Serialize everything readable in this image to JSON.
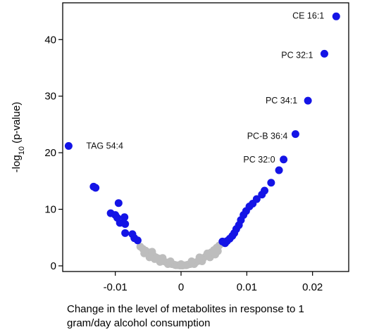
{
  "chart_data": {
    "type": "scatter",
    "xlabel_line1": "Change in the level of metabolites in response to 1",
    "xlabel_line2": "gram/day alcohol consumption",
    "ylabel_prefix": "-log",
    "ylabel_sub": "10",
    "ylabel_suffix": " (p-value)",
    "xlim": [
      -0.018,
      0.0255
    ],
    "ylim": [
      -1.0,
      46.5
    ],
    "x_ticks": [
      {
        "value": -0.01,
        "label": "-0.01"
      },
      {
        "value": 0.0,
        "label": "0"
      },
      {
        "value": 0.01,
        "label": "0.01"
      },
      {
        "value": 0.02,
        "label": "0.02"
      }
    ],
    "y_ticks": [
      {
        "value": 0,
        "label": "0"
      },
      {
        "value": 10,
        "label": "10"
      },
      {
        "value": 20,
        "label": "20"
      },
      {
        "value": 30,
        "label": "30"
      },
      {
        "value": 40,
        "label": "40"
      }
    ],
    "grid": false,
    "colors": {
      "significant": "#1414e6",
      "nonsignificant": "#bdbdbd"
    },
    "significant_points": [
      {
        "x": -0.0171,
        "y": 21.2
      },
      {
        "x": -0.0133,
        "y": 14.0
      },
      {
        "x": -0.013,
        "y": 13.8
      },
      {
        "x": -0.0107,
        "y": 9.3
      },
      {
        "x": -0.01,
        "y": 9.0
      },
      {
        "x": -0.0095,
        "y": 11.1
      },
      {
        "x": -0.0093,
        "y": 7.6
      },
      {
        "x": -0.0097,
        "y": 8.5
      },
      {
        "x": -0.0086,
        "y": 8.6
      },
      {
        "x": -0.0085,
        "y": 7.4
      },
      {
        "x": -0.0085,
        "y": 5.8
      },
      {
        "x": -0.0074,
        "y": 5.6
      },
      {
        "x": -0.0071,
        "y": 4.9
      },
      {
        "x": -0.0066,
        "y": 4.5
      },
      {
        "x": 0.0063,
        "y": 4.3
      },
      {
        "x": 0.0067,
        "y": 4.0
      },
      {
        "x": 0.007,
        "y": 4.4
      },
      {
        "x": 0.0074,
        "y": 4.8
      },
      {
        "x": 0.0078,
        "y": 5.3
      },
      {
        "x": 0.0081,
        "y": 5.8
      },
      {
        "x": 0.0084,
        "y": 6.5
      },
      {
        "x": 0.0088,
        "y": 7.2
      },
      {
        "x": 0.0091,
        "y": 8.1
      },
      {
        "x": 0.0095,
        "y": 9.0
      },
      {
        "x": 0.0099,
        "y": 9.7
      },
      {
        "x": 0.0104,
        "y": 10.5
      },
      {
        "x": 0.0109,
        "y": 11.0
      },
      {
        "x": 0.0115,
        "y": 11.8
      },
      {
        "x": 0.0123,
        "y": 12.6
      },
      {
        "x": 0.0127,
        "y": 13.3
      },
      {
        "x": 0.0137,
        "y": 14.7
      },
      {
        "x": 0.0149,
        "y": 16.9
      },
      {
        "x": 0.0156,
        "y": 18.8
      },
      {
        "x": 0.0174,
        "y": 23.3
      },
      {
        "x": 0.0193,
        "y": 29.2
      },
      {
        "x": 0.0218,
        "y": 37.5
      },
      {
        "x": 0.0236,
        "y": 44.1
      }
    ],
    "nonsignificant_points": [
      {
        "x": -0.0062,
        "y": 3.4
      },
      {
        "x": -0.0058,
        "y": 3.0
      },
      {
        "x": -0.0054,
        "y": 2.7
      },
      {
        "x": -0.005,
        "y": 2.4
      },
      {
        "x": -0.0046,
        "y": 2.1
      },
      {
        "x": -0.0042,
        "y": 1.8
      },
      {
        "x": -0.0038,
        "y": 1.5
      },
      {
        "x": -0.0034,
        "y": 1.3
      },
      {
        "x": -0.003,
        "y": 1.0
      },
      {
        "x": -0.0026,
        "y": 0.8
      },
      {
        "x": -0.0022,
        "y": 0.6
      },
      {
        "x": -0.0018,
        "y": 0.4
      },
      {
        "x": -0.0014,
        "y": 0.3
      },
      {
        "x": -0.001,
        "y": 0.2
      },
      {
        "x": -0.0006,
        "y": 0.1
      },
      {
        "x": -0.0002,
        "y": 0.05
      },
      {
        "x": 0.0002,
        "y": 0.05
      },
      {
        "x": 0.0006,
        "y": 0.1
      },
      {
        "x": 0.001,
        "y": 0.2
      },
      {
        "x": 0.0014,
        "y": 0.3
      },
      {
        "x": 0.0018,
        "y": 0.45
      },
      {
        "x": 0.0022,
        "y": 0.6
      },
      {
        "x": 0.0026,
        "y": 0.85
      },
      {
        "x": 0.003,
        "y": 1.1
      },
      {
        "x": 0.0034,
        "y": 1.4
      },
      {
        "x": 0.0038,
        "y": 1.7
      },
      {
        "x": 0.0042,
        "y": 2.0
      },
      {
        "x": 0.0046,
        "y": 2.4
      },
      {
        "x": 0.005,
        "y": 2.8
      },
      {
        "x": 0.0054,
        "y": 3.2
      },
      {
        "x": 0.0058,
        "y": 3.6
      },
      {
        "x": -0.0048,
        "y": 1.5
      },
      {
        "x": -0.004,
        "y": 1.2
      },
      {
        "x": -0.0032,
        "y": 0.7
      },
      {
        "x": -0.002,
        "y": 0.3
      },
      {
        "x": -0.0008,
        "y": 0.1
      },
      {
        "x": 0.0008,
        "y": 0.1
      },
      {
        "x": 0.002,
        "y": 0.3
      },
      {
        "x": 0.0032,
        "y": 0.8
      },
      {
        "x": 0.0044,
        "y": 1.5
      },
      {
        "x": 0.0052,
        "y": 2.0
      },
      {
        "x": -0.0056,
        "y": 2.2
      },
      {
        "x": 0.0056,
        "y": 2.6
      },
      {
        "x": -0.0044,
        "y": 2.5
      },
      {
        "x": 0.004,
        "y": 2.2
      },
      {
        "x": -0.0028,
        "y": 1.4
      },
      {
        "x": 0.0028,
        "y": 1.5
      },
      {
        "x": -0.0016,
        "y": 0.8
      },
      {
        "x": 0.0016,
        "y": 0.8
      },
      {
        "x": 0.0,
        "y": 0.3
      }
    ],
    "annotations": [
      {
        "text": "CE 16:1",
        "x": 0.0236,
        "y": 44.1,
        "anchor": "end",
        "dx": -17,
        "dy": 3
      },
      {
        "text": "PC 32:1",
        "x": 0.0218,
        "y": 37.5,
        "anchor": "end",
        "dx": -16,
        "dy": 6
      },
      {
        "text": "PC 34:1",
        "x": 0.0193,
        "y": 29.2,
        "anchor": "end",
        "dx": -15,
        "dy": 4
      },
      {
        "text": "PC-B 36:4",
        "x": 0.0174,
        "y": 23.3,
        "anchor": "end",
        "dx": -11,
        "dy": 7
      },
      {
        "text": "PC 32:0",
        "x": 0.0156,
        "y": 18.8,
        "anchor": "end",
        "dx": -12,
        "dy": 4
      },
      {
        "text": "TAG 54:4",
        "x": -0.0171,
        "y": 21.2,
        "anchor": "start",
        "dx": 25,
        "dy": 4
      }
    ]
  }
}
